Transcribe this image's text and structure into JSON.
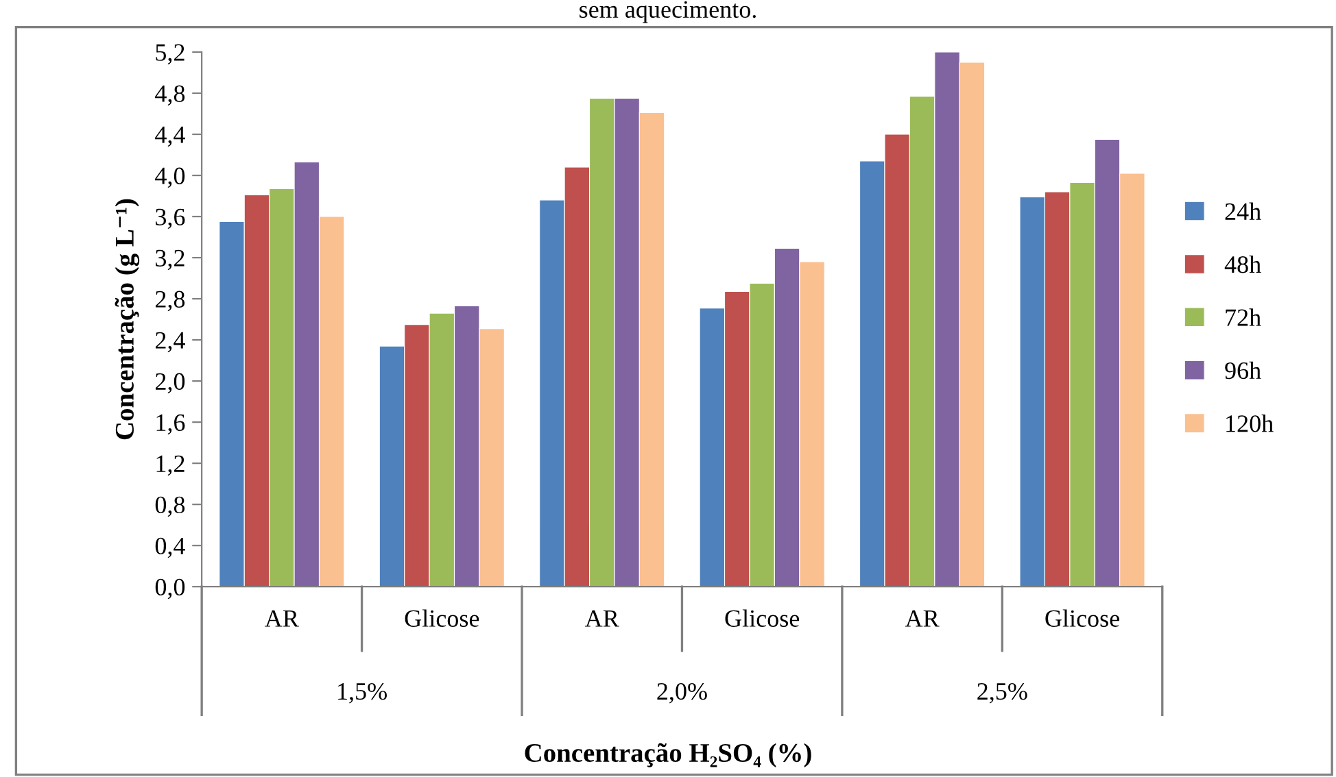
{
  "chart_data": {
    "type": "bar",
    "title": "sem aquecimento.",
    "xlabel": "Concentração H₂SO₄ (%)",
    "ylabel": "Concentração (g L⁻¹)",
    "categories": [
      "AR",
      "Glicose",
      "AR",
      "Glicose",
      "AR",
      "Glicose"
    ],
    "annotations": [
      "1,5%",
      "2,0%",
      "2,5%"
    ],
    "series": [
      {
        "name": "24h",
        "color": "#4f81bd",
        "values": [
          3.55,
          2.34,
          3.76,
          2.71,
          4.14,
          3.79
        ]
      },
      {
        "name": "48h",
        "color": "#c0504d",
        "values": [
          3.81,
          2.55,
          4.08,
          2.87,
          4.4,
          3.84
        ]
      },
      {
        "name": "72h",
        "color": "#9bbb59",
        "values": [
          3.87,
          2.66,
          4.75,
          2.95,
          4.77,
          3.93
        ]
      },
      {
        "name": "96h",
        "color": "#8064a2",
        "values": [
          4.13,
          2.73,
          4.75,
          3.29,
          5.2,
          4.35
        ]
      },
      {
        "name": "120h",
        "color": "#fac090",
        "values": [
          3.6,
          2.51,
          4.61,
          3.16,
          5.1,
          4.02
        ]
      }
    ],
    "ylim": [
      0,
      5.2
    ],
    "yticks": [
      {
        "value": 0,
        "label": "0,0"
      },
      {
        "value": 0.4,
        "label": "0,4"
      },
      {
        "value": 0.8,
        "label": "0,8"
      },
      {
        "value": 1.2,
        "label": "1,2"
      },
      {
        "value": 1.6,
        "label": "1,6"
      },
      {
        "value": 2.0,
        "label": "2,0"
      },
      {
        "value": 2.4,
        "label": "2,4"
      },
      {
        "value": 2.8,
        "label": "2,8"
      },
      {
        "value": 3.2,
        "label": "3,2"
      },
      {
        "value": 3.6,
        "label": "3,6"
      },
      {
        "value": 4.0,
        "label": "4,0"
      },
      {
        "value": 4.4,
        "label": "4,4"
      },
      {
        "value": 4.8,
        "label": "4,8"
      },
      {
        "value": 5.2,
        "label": "5,2"
      }
    ],
    "grid": false,
    "legend": "right"
  }
}
